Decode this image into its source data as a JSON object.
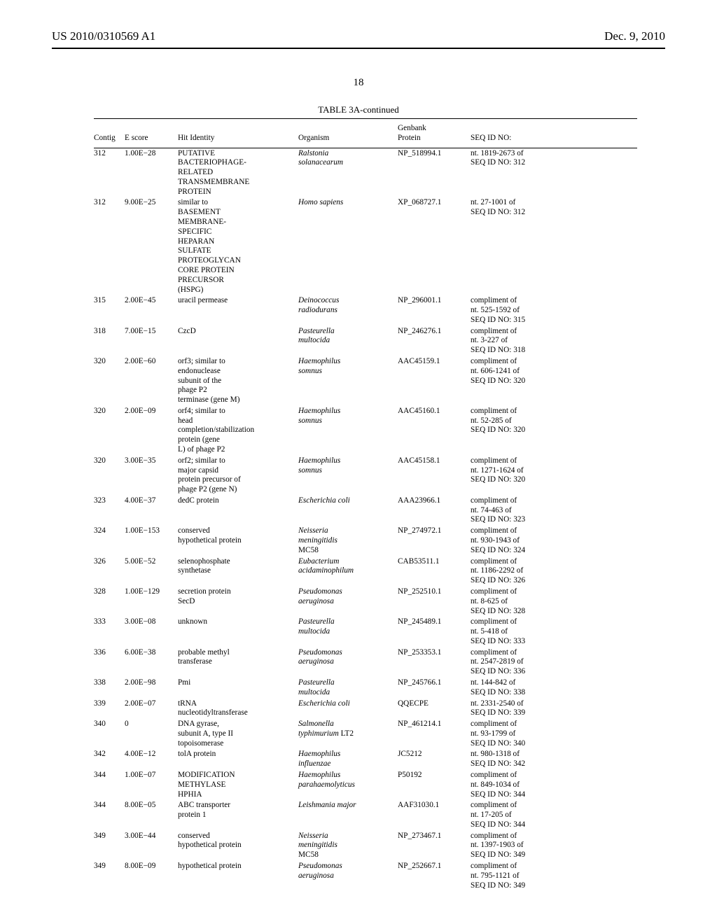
{
  "header": {
    "left": "US 2010/0310569 A1",
    "right": "Dec. 9, 2010"
  },
  "page_number": "18",
  "table": {
    "title": "TABLE 3A-continued",
    "columns": {
      "contig": "Contig",
      "escore": "E score",
      "hit": "Hit Identity",
      "organism": "Organism",
      "genbank_l1": "Genbank",
      "genbank_l2": "Protein",
      "seqid": "SEQ ID NO:"
    },
    "rows": [
      {
        "contig": "312",
        "e": "1.00E−28",
        "hit": "PUTATIVE\nBACTERIOPHAGE-\nRELATED\nTRANSMEMBRANE\nPROTEIN",
        "org": "Ralstonia\nsolanacearum",
        "gb": "NP_518994.1",
        "seq": "nt. 1819-2673 of\nSEQ ID NO: 312"
      },
      {
        "contig": "312",
        "e": "9.00E−25",
        "hit": "similar to\nBASEMENT\nMEMBRANE-\nSPECIFIC\nHEPARAN\nSULFATE\nPROTEOGLYCAN\nCORE PROTEIN\nPRECURSOR\n(HSPG)",
        "org": "Homo sapiens",
        "gb": "XP_068727.1",
        "seq": "nt. 27-1001 of\nSEQ ID NO: 312"
      },
      {
        "contig": "315",
        "e": "2.00E−45",
        "hit": "uracil permease",
        "org": "Deinococcus\nradiodurans",
        "gb": "NP_296001.1",
        "seq": "compliment of\nnt. 525-1592 of\nSEQ ID NO: 315"
      },
      {
        "contig": "318",
        "e": "7.00E−15",
        "hit": "CzcD",
        "org": "Pasteurella\nmultocida",
        "gb": "NP_246276.1",
        "seq": "compliment of\nnt. 3-227 of\nSEQ ID NO: 318"
      },
      {
        "contig": "320",
        "e": "2.00E−60",
        "hit": "orf3; similar to\nendonuclease\nsubunit of the\nphage P2\nterminase (gene M)",
        "org": "Haemophilus\nsomnus",
        "gb": "AAC45159.1",
        "seq": "compliment of\nnt. 606-1241 of\nSEQ ID NO: 320"
      },
      {
        "contig": "320",
        "e": "2.00E−09",
        "hit": "orf4; similar to\nhead\ncompletion/stabilization\nprotein (gene\nL) of phage P2",
        "org": "Haemophilus\nsomnus",
        "gb": "AAC45160.1",
        "seq": "compliment of\nnt. 52-285 of\nSEQ ID NO: 320"
      },
      {
        "contig": "320",
        "e": "3.00E−35",
        "hit": "orf2; similar to\nmajor capsid\nprotein precursor of\nphage P2 (gene N)",
        "org": "Haemophilus\nsomnus",
        "gb": "AAC45158.1",
        "seq": "compliment of\nnt. 1271-1624 of\nSEQ ID NO: 320"
      },
      {
        "contig": "323",
        "e": "4.00E−37",
        "hit": "dedC protein",
        "org": "Escherichia coli",
        "gb": "AAA23966.1",
        "seq": "compliment of\nnt. 74-463 of\nSEQ ID NO: 323"
      },
      {
        "contig": "324",
        "e": "1.00E−153",
        "hit": "conserved\nhypothetical protein",
        "org": "Neisseria\nmeningitidis\n<span class=\"org-normal\">MC58</span>",
        "gb": "NP_274972.1",
        "seq": "compliment of\nnt. 930-1943 of\nSEQ ID NO: 324"
      },
      {
        "contig": "326",
        "e": "5.00E−52",
        "hit": "selenophosphate\nsynthetase",
        "org": "Eubacterium\nacidaminophilum",
        "gb": "CAB53511.1",
        "seq": "compliment of\nnt. 1186-2292 of\nSEQ ID NO: 326"
      },
      {
        "contig": "328",
        "e": "1.00E−129",
        "hit": "secretion protein\nSecD",
        "org": "Pseudomonas\naeruginosa",
        "gb": "NP_252510.1",
        "seq": "compliment of\nnt. 8-625 of\nSEQ ID NO: 328"
      },
      {
        "contig": "333",
        "e": "3.00E−08",
        "hit": "unknown",
        "org": "Pasteurella\nmultocida",
        "gb": "NP_245489.1",
        "seq": "compliment of\nnt. 5-418 of\nSEQ ID NO: 333"
      },
      {
        "contig": "336",
        "e": "6.00E−38",
        "hit": "probable methyl\ntransferase",
        "org": "Pseudomonas\naeruginosa",
        "gb": "NP_253353.1",
        "seq": "compliment of\nnt. 2547-2819 of\nSEQ ID NO: 336"
      },
      {
        "contig": "338",
        "e": "2.00E−98",
        "hit": "Pmi",
        "org": "Pasteurella\nmultocida",
        "gb": "NP_245766.1",
        "seq": "nt. 144-842 of\nSEQ ID NO: 338"
      },
      {
        "contig": "339",
        "e": "2.00E−07",
        "hit": "tRNA\nnucleotidyltransferase",
        "org": "Escherichia coli",
        "gb": "QQECPE",
        "seq": "nt. 2331-2540 of\nSEQ ID NO: 339"
      },
      {
        "contig": "340",
        "e": "0",
        "hit": "DNA gyrase,\nsubunit A, type II\ntopoisomerase",
        "org": "Salmonella\ntyphimurium <span class=\"org-normal\">LT2</span>",
        "gb": "NP_461214.1",
        "seq": "compliment of\nnt. 93-1799 of\nSEQ ID NO: 340"
      },
      {
        "contig": "342",
        "e": "4.00E−12",
        "hit": "tolA protein",
        "org": "Haemophilus\ninfluenzae",
        "gb": "JC5212",
        "seq": "nt. 980-1318 of\nSEQ ID NO: 342"
      },
      {
        "contig": "344",
        "e": "1.00E−07",
        "hit": "MODIFICATION\nMETHYLASE\nHPHIA",
        "org": "Haemophilus\nparahaemolyticus",
        "gb": "P50192",
        "seq": "compliment of\nnt. 849-1034 of\nSEQ ID NO: 344"
      },
      {
        "contig": "344",
        "e": "8.00E−05",
        "hit": "ABC transporter\nprotein 1",
        "org": "Leishmania major",
        "gb": "AAF31030.1",
        "seq": "compliment of\nnt. 17-205 of\nSEQ ID NO: 344"
      },
      {
        "contig": "349",
        "e": "3.00E−44",
        "hit": "conserved\nhypothetical protein",
        "org": "Neisseria\nmeningitidis\n<span class=\"org-normal\">MC58</span>",
        "gb": "NP_273467.1",
        "seq": "compliment of\nnt. 1397-1903 of\nSEQ ID NO: 349"
      },
      {
        "contig": "349",
        "e": "8.00E−09",
        "hit": "hypothetical protein",
        "org": "Pseudomonas\naeruginosa",
        "gb": "NP_252667.1",
        "seq": "compliment of\nnt. 795-1121 of\nSEQ ID NO: 349"
      }
    ]
  }
}
